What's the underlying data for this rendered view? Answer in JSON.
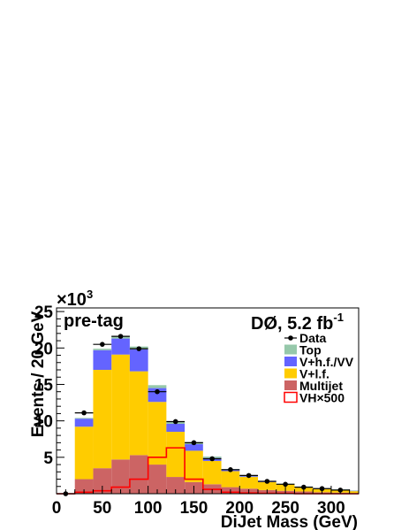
{
  "chart_data": {
    "type": "bar",
    "stacked": true,
    "xlabel": "DiJet Mass (GeV)",
    "ylabel": "Events / 20 GeV",
    "y_multiplier": "×10",
    "y_multiplier_exp": "3",
    "xlim": [
      0,
      330
    ],
    "ylim": [
      0,
      25.5
    ],
    "x_ticks": [
      0,
      50,
      100,
      150,
      200,
      250,
      300
    ],
    "y_ticks": [
      5,
      10,
      15,
      20,
      25
    ],
    "bin_edges": [
      0,
      20,
      40,
      60,
      80,
      100,
      120,
      140,
      160,
      180,
      200,
      220,
      240,
      260,
      280,
      300,
      320,
      330
    ],
    "series": [
      {
        "name": "Multijet",
        "color": "#cc6464",
        "values": [
          0,
          2.0,
          3.5,
          4.7,
          5.3,
          4.0,
          2.3,
          1.6,
          1.3,
          0.9,
          0.7,
          0.5,
          0.4,
          0.3,
          0.2,
          0.15,
          0.1
        ]
      },
      {
        "name": "V+l.f.",
        "color": "#ffcc00",
        "values": [
          0,
          7.2,
          13.5,
          14.4,
          11.5,
          8.6,
          6.2,
          4.3,
          3.2,
          2.2,
          1.6,
          1.1,
          0.9,
          0.6,
          0.45,
          0.35,
          0.25
        ]
      },
      {
        "name": "V+h.f./VV",
        "color": "#6464ff",
        "values": [
          0,
          1.1,
          2.7,
          2.2,
          3.0,
          1.9,
          1.1,
          0.9,
          0.4,
          0.2,
          0.1,
          0.05,
          0.05,
          0.05,
          0.05,
          0.05,
          0.05
        ]
      },
      {
        "name": "Top",
        "color": "#96c8aa",
        "values": [
          0,
          0.1,
          0.2,
          0.3,
          0.4,
          0.4,
          0.35,
          0.3,
          0.2,
          0.1,
          0.1,
          0.05,
          0.05,
          0.05,
          0.05,
          0.05,
          0.05
        ]
      }
    ],
    "signal": {
      "name": "VH×500",
      "color": "#ff0000",
      "values": [
        0,
        0.2,
        0.4,
        0.9,
        2.0,
        5.0,
        6.3,
        2.0,
        0.6,
        0.2,
        0.1,
        0.05,
        0.05,
        0,
        0,
        0,
        0
      ]
    },
    "data": {
      "name": "Data",
      "x": [
        10,
        30,
        50,
        70,
        90,
        110,
        130,
        150,
        170,
        190,
        210,
        230,
        250,
        270,
        290,
        310
      ],
      "y": [
        0,
        11.1,
        20.5,
        21.6,
        19.9,
        14.0,
        9.9,
        7.0,
        4.8,
        3.3,
        2.5,
        1.7,
        1.3,
        0.9,
        0.7,
        0.5
      ]
    },
    "legend_order": [
      "Data",
      "Top",
      "V+h.f./VV",
      "V+l.f.",
      "Multijet",
      "VH×500"
    ],
    "legend_position": "top-right"
  },
  "labels": {
    "selection": "pre-tag",
    "experiment": "DØ, 5.2 fb",
    "luminosity_exp": "-1"
  }
}
